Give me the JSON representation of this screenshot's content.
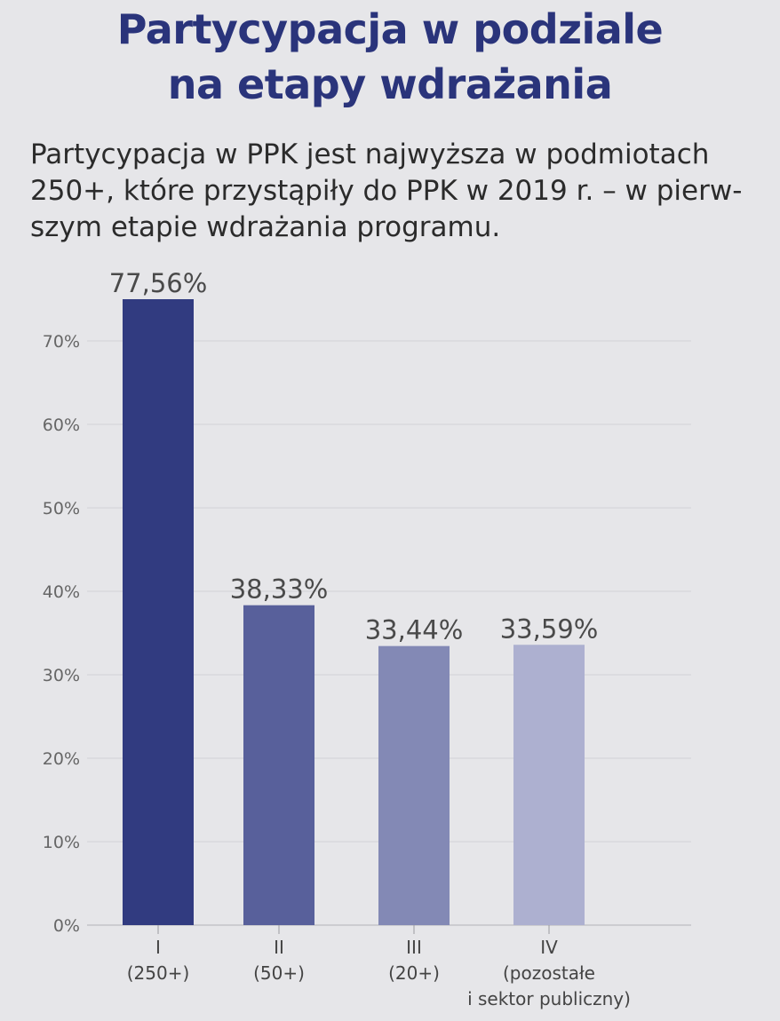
{
  "title_lines": [
    "Partycypacja w podziale",
    "na etapy wdrażania"
  ],
  "subtitle_lines": [
    "Partycypacja w PPK jest najwyższa w podmiotach",
    "250+, które przystąpiły do PPK w 2019 r. – w pierw-",
    "szym etapie wdrażania programu."
  ],
  "colors": {
    "title": "#2a347b",
    "bars": [
      "#313b80",
      "#58609b",
      "#8389b5",
      "#adb0d0"
    ]
  },
  "chart_data": {
    "type": "bar",
    "categories": [
      [
        "I",
        "(250+)"
      ],
      [
        "II",
        "(50+)"
      ],
      [
        "III",
        "(20+)"
      ],
      [
        "IV",
        "(pozostałe",
        "i sektor publiczny)"
      ]
    ],
    "values": [
      77.56,
      38.33,
      33.44,
      33.59
    ],
    "value_labels": [
      "77,56%",
      "38,33%",
      "33,44%",
      "33,59%"
    ],
    "y_ticks": [
      0,
      10,
      20,
      30,
      40,
      50,
      60,
      70
    ],
    "y_tick_labels": [
      "0%",
      "10%",
      "20%",
      "30%",
      "40%",
      "50%",
      "60%",
      "70%"
    ],
    "ylim": [
      0,
      70
    ],
    "grid": true,
    "bar_top_clipped_at": 75
  }
}
